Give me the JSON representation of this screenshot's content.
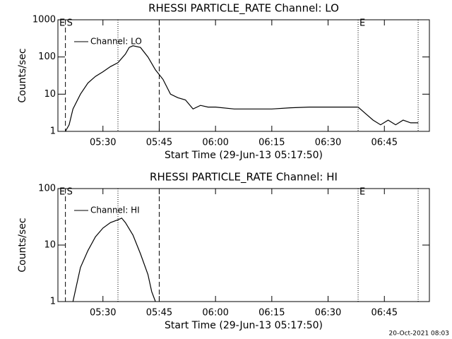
{
  "chart_data": [
    {
      "type": "line",
      "title": "RHESSI PARTICLE_RATE Channel: LO",
      "xlabel": "Start Time (29-Jun-13 05:17:50)",
      "ylabel": "Counts/sec",
      "x": [
        "05:20",
        "05:21",
        "05:22",
        "05:24",
        "05:26",
        "05:28",
        "05:30",
        "05:32",
        "05:34",
        "05:36",
        "05:37",
        "05:38",
        "05:40",
        "05:42",
        "05:44",
        "05:46",
        "05:48",
        "05:50",
        "05:52",
        "05:54",
        "05:56",
        "05:58",
        "06:00",
        "06:05",
        "06:10",
        "06:15",
        "06:20",
        "06:25",
        "06:30",
        "06:35",
        "06:38",
        "06:40",
        "06:42",
        "06:44",
        "06:46",
        "06:48",
        "06:50",
        "06:52",
        "06:54"
      ],
      "series": [
        {
          "name": "Channel: LO",
          "color": "#000000",
          "values": [
            1,
            1.5,
            4,
            10,
            20,
            30,
            40,
            55,
            70,
            120,
            180,
            200,
            180,
            100,
            45,
            25,
            10,
            8,
            7,
            4,
            5,
            4.5,
            4.5,
            4,
            4,
            4,
            4.3,
            4.5,
            4.5,
            4.5,
            4.5,
            3,
            2,
            1.5,
            2,
            1.5,
            2,
            1.7,
            1.7
          ]
        }
      ],
      "xlim": [
        "05:18",
        "06:57"
      ],
      "xticks": [
        "05:30",
        "05:45",
        "06:00",
        "06:15",
        "06:30",
        "06:45"
      ],
      "ylim": [
        1,
        1000
      ],
      "yticks": [
        1,
        10,
        100,
        1000
      ],
      "log_y": true,
      "legend": "upper left",
      "markers": [
        {
          "x": "05:18",
          "label": "E"
        },
        {
          "x": "05:20",
          "style": "dashed",
          "label": "S"
        },
        {
          "x": "05:34",
          "style": "dotted"
        },
        {
          "x": "05:45",
          "style": "dashed"
        },
        {
          "x": "06:38",
          "style": "dotted",
          "label": "E"
        },
        {
          "x": "06:54",
          "style": "dotted"
        }
      ]
    },
    {
      "type": "line",
      "title": "RHESSI PARTICLE_RATE Channel: HI",
      "xlabel": "Start Time (29-Jun-13 05:17:50)",
      "ylabel": "Counts/sec",
      "x": [
        "05:22",
        "05:23",
        "05:24",
        "05:26",
        "05:28",
        "05:30",
        "05:32",
        "05:34",
        "05:35",
        "05:36",
        "05:38",
        "05:40",
        "05:42",
        "05:43",
        "05:44"
      ],
      "series": [
        {
          "name": "Channel: HI",
          "color": "#000000",
          "values": [
            1,
            2,
            4,
            8,
            14,
            20,
            25,
            28,
            30,
            25,
            15,
            7,
            3,
            1.5,
            1
          ]
        }
      ],
      "xlim": [
        "05:18",
        "06:57"
      ],
      "xticks": [
        "05:30",
        "05:45",
        "06:00",
        "06:15",
        "06:30",
        "06:45"
      ],
      "ylim": [
        1,
        100
      ],
      "yticks": [
        1,
        10,
        100
      ],
      "log_y": true,
      "legend": "upper left",
      "markers": [
        {
          "x": "05:18",
          "label": "E"
        },
        {
          "x": "05:20",
          "style": "dashed",
          "label": "S"
        },
        {
          "x": "05:34",
          "style": "dotted"
        },
        {
          "x": "05:45",
          "style": "dashed"
        },
        {
          "x": "06:38",
          "style": "dotted",
          "label": "E"
        },
        {
          "x": "06:54",
          "style": "dotted"
        }
      ]
    }
  ],
  "footer": "20-Oct-2021 08:03"
}
